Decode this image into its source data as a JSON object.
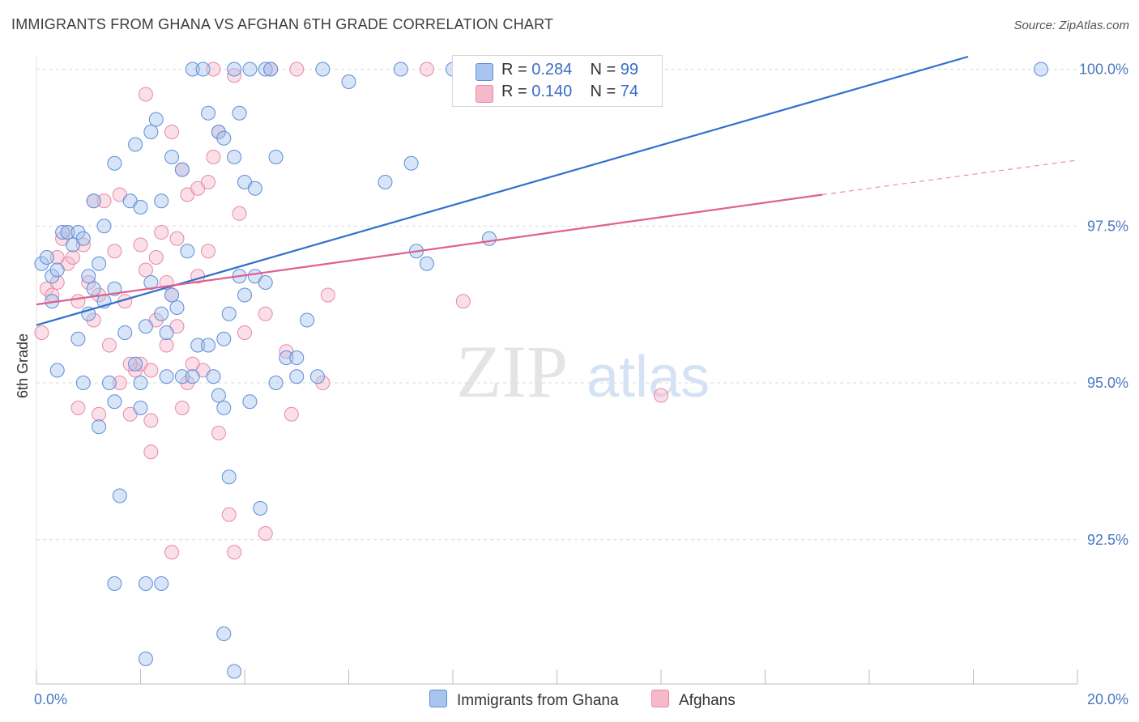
{
  "header": {
    "title": "IMMIGRANTS FROM GHANA VS AFGHAN 6TH GRADE CORRELATION CHART",
    "source": "Source: ZipAtlas.com"
  },
  "colors": {
    "blue_fill": "#a9c4ee",
    "blue_stroke": "#5b8fd6",
    "blue_line": "#2f6fcc",
    "pink_fill": "#f6b9cc",
    "pink_stroke": "#e889a6",
    "pink_line": "#e0608e",
    "axis_text": "#4a78c2"
  },
  "legend": {
    "rows": [
      {
        "r_label": "R = ",
        "r_value": "0.284",
        "n_label": "N = ",
        "n_value": "99"
      },
      {
        "r_label": "R = ",
        "r_value": "0.140",
        "n_label": "N = ",
        "n_value": "74"
      }
    ]
  },
  "bottom_legend": [
    "Immigrants from Ghana",
    "Afghans"
  ],
  "watermark": {
    "zip": "ZIP",
    "atlas": "atlas"
  },
  "chart_data": {
    "type": "scatter",
    "title": "IMMIGRANTS FROM GHANA VS AFGHAN 6TH GRADE CORRELATION CHART",
    "xlabel": "",
    "ylabel": "6th Grade",
    "xlim": [
      0,
      20
    ],
    "ylim": [
      90.2,
      100.2
    ],
    "x_tick_labels": [
      "0.0%",
      "20.0%"
    ],
    "y_ticks": [
      92.5,
      95.0,
      97.5,
      100.0
    ],
    "y_tick_labels": [
      "92.5%",
      "95.0%",
      "97.5%",
      "100.0%"
    ],
    "grid": true,
    "legend_position": "top-center",
    "series": [
      {
        "name": "Immigrants from Ghana",
        "R": 0.284,
        "N": 99,
        "trend": {
          "x": [
            0.0,
            17.9
          ],
          "y": [
            95.92,
            100.2
          ]
        },
        "points": [
          [
            0.1,
            96.9
          ],
          [
            0.2,
            97.0
          ],
          [
            0.3,
            96.7
          ],
          [
            0.4,
            96.8
          ],
          [
            0.5,
            97.4
          ],
          [
            0.3,
            96.3
          ],
          [
            0.7,
            97.2
          ],
          [
            0.6,
            97.4
          ],
          [
            0.8,
            97.4
          ],
          [
            0.9,
            97.3
          ],
          [
            1.0,
            96.7
          ],
          [
            1.1,
            96.5
          ],
          [
            1.2,
            96.9
          ],
          [
            0.4,
            95.2
          ],
          [
            0.8,
            95.7
          ],
          [
            1.0,
            96.1
          ],
          [
            1.3,
            96.3
          ],
          [
            1.5,
            96.5
          ],
          [
            1.4,
            95.0
          ],
          [
            1.7,
            95.8
          ],
          [
            1.9,
            95.3
          ],
          [
            2.0,
            95.0
          ],
          [
            2.1,
            95.9
          ],
          [
            2.2,
            96.6
          ],
          [
            2.4,
            96.1
          ],
          [
            2.5,
            95.8
          ],
          [
            2.6,
            96.4
          ],
          [
            2.7,
            96.2
          ],
          [
            2.8,
            95.1
          ],
          [
            3.0,
            95.1
          ],
          [
            3.1,
            95.6
          ],
          [
            3.3,
            95.6
          ],
          [
            3.4,
            95.1
          ],
          [
            3.6,
            95.7
          ],
          [
            3.7,
            96.1
          ],
          [
            3.9,
            96.7
          ],
          [
            4.0,
            96.4
          ],
          [
            4.2,
            96.7
          ],
          [
            4.4,
            96.6
          ],
          [
            4.6,
            95.0
          ],
          [
            4.8,
            95.4
          ],
          [
            5.0,
            95.1
          ],
          [
            5.2,
            96.0
          ],
          [
            5.4,
            95.1
          ],
          [
            4.1,
            94.7
          ],
          [
            3.5,
            94.8
          ],
          [
            1.8,
            97.9
          ],
          [
            2.0,
            97.8
          ],
          [
            2.4,
            97.9
          ],
          [
            1.5,
            98.5
          ],
          [
            1.3,
            97.5
          ],
          [
            1.1,
            97.9
          ],
          [
            1.9,
            98.8
          ],
          [
            2.2,
            99.0
          ],
          [
            2.3,
            99.2
          ],
          [
            2.6,
            98.6
          ],
          [
            2.8,
            98.4
          ],
          [
            2.9,
            97.1
          ],
          [
            3.3,
            99.3
          ],
          [
            3.5,
            99.0
          ],
          [
            3.6,
            98.9
          ],
          [
            3.8,
            98.6
          ],
          [
            3.9,
            99.3
          ],
          [
            4.0,
            98.2
          ],
          [
            4.2,
            98.1
          ],
          [
            4.6,
            98.6
          ],
          [
            3.0,
            100.0
          ],
          [
            3.2,
            100.0
          ],
          [
            3.8,
            100.0
          ],
          [
            4.1,
            100.0
          ],
          [
            4.4,
            100.0
          ],
          [
            4.5,
            100.0
          ],
          [
            5.5,
            100.0
          ],
          [
            7.0,
            100.0
          ],
          [
            8.0,
            100.0
          ],
          [
            9.5,
            100.0
          ],
          [
            6.0,
            99.8
          ],
          [
            6.7,
            98.2
          ],
          [
            7.2,
            98.5
          ],
          [
            7.3,
            97.1
          ],
          [
            7.5,
            96.9
          ],
          [
            8.7,
            97.3
          ],
          [
            19.3,
            100.0
          ],
          [
            1.2,
            94.3
          ],
          [
            1.5,
            94.7
          ],
          [
            2.0,
            94.6
          ],
          [
            2.5,
            95.1
          ],
          [
            3.6,
            94.6
          ],
          [
            1.6,
            93.2
          ],
          [
            3.7,
            93.5
          ],
          [
            4.3,
            93.0
          ],
          [
            1.5,
            91.8
          ],
          [
            2.1,
            91.8
          ],
          [
            2.4,
            91.8
          ],
          [
            3.6,
            91.0
          ],
          [
            2.1,
            90.6
          ],
          [
            3.8,
            90.4
          ],
          [
            5.0,
            95.4
          ],
          [
            0.9,
            95.0
          ]
        ]
      },
      {
        "name": "Afghans",
        "R": 0.14,
        "N": 74,
        "trend": {
          "x": [
            0.0,
            15.1
          ],
          "y": [
            96.25,
            98.0
          ],
          "dash_to": {
            "x": 20.0,
            "y": 98.55
          }
        },
        "points": [
          [
            0.1,
            95.8
          ],
          [
            0.2,
            96.5
          ],
          [
            0.3,
            96.4
          ],
          [
            0.4,
            96.6
          ],
          [
            0.5,
            97.3
          ],
          [
            0.6,
            96.9
          ],
          [
            0.7,
            97.0
          ],
          [
            0.9,
            97.2
          ],
          [
            1.0,
            96.6
          ],
          [
            0.8,
            96.3
          ],
          [
            1.1,
            96.0
          ],
          [
            1.2,
            96.4
          ],
          [
            1.4,
            95.6
          ],
          [
            1.6,
            95.0
          ],
          [
            1.7,
            96.3
          ],
          [
            1.9,
            95.2
          ],
          [
            2.0,
            95.3
          ],
          [
            2.2,
            95.2
          ],
          [
            2.3,
            96.0
          ],
          [
            2.6,
            96.4
          ],
          [
            2.7,
            95.9
          ],
          [
            2.9,
            95.0
          ],
          [
            3.0,
            95.3
          ],
          [
            3.2,
            95.2
          ],
          [
            0.8,
            94.6
          ],
          [
            1.2,
            94.5
          ],
          [
            1.8,
            94.5
          ],
          [
            2.2,
            94.4
          ],
          [
            2.8,
            94.6
          ],
          [
            3.5,
            94.2
          ],
          [
            2.2,
            93.9
          ],
          [
            3.7,
            92.9
          ],
          [
            3.8,
            92.3
          ],
          [
            4.4,
            92.6
          ],
          [
            2.6,
            92.3
          ],
          [
            4.0,
            95.8
          ],
          [
            4.4,
            96.1
          ],
          [
            4.8,
            95.5
          ],
          [
            4.9,
            94.5
          ],
          [
            5.5,
            95.0
          ],
          [
            5.6,
            96.4
          ],
          [
            8.2,
            96.3
          ],
          [
            12.0,
            94.8
          ],
          [
            1.1,
            97.9
          ],
          [
            1.3,
            97.9
          ],
          [
            1.6,
            98.0
          ],
          [
            2.0,
            97.2
          ],
          [
            2.3,
            97.0
          ],
          [
            2.4,
            97.4
          ],
          [
            2.7,
            97.3
          ],
          [
            2.9,
            98.0
          ],
          [
            3.1,
            98.1
          ],
          [
            3.3,
            98.2
          ],
          [
            3.4,
            98.6
          ],
          [
            3.5,
            99.0
          ],
          [
            3.9,
            97.7
          ],
          [
            2.1,
            99.6
          ],
          [
            2.6,
            99.0
          ],
          [
            2.8,
            98.4
          ],
          [
            3.4,
            100.0
          ],
          [
            3.8,
            99.9
          ],
          [
            4.5,
            100.0
          ],
          [
            5.0,
            100.0
          ],
          [
            7.5,
            100.0
          ],
          [
            9.0,
            99.9
          ],
          [
            2.5,
            96.6
          ],
          [
            3.3,
            97.1
          ],
          [
            3.1,
            96.7
          ],
          [
            2.1,
            96.8
          ],
          [
            1.5,
            97.1
          ],
          [
            0.6,
            97.4
          ],
          [
            0.4,
            97.0
          ],
          [
            1.8,
            95.3
          ],
          [
            2.5,
            95.6
          ]
        ]
      }
    ]
  }
}
